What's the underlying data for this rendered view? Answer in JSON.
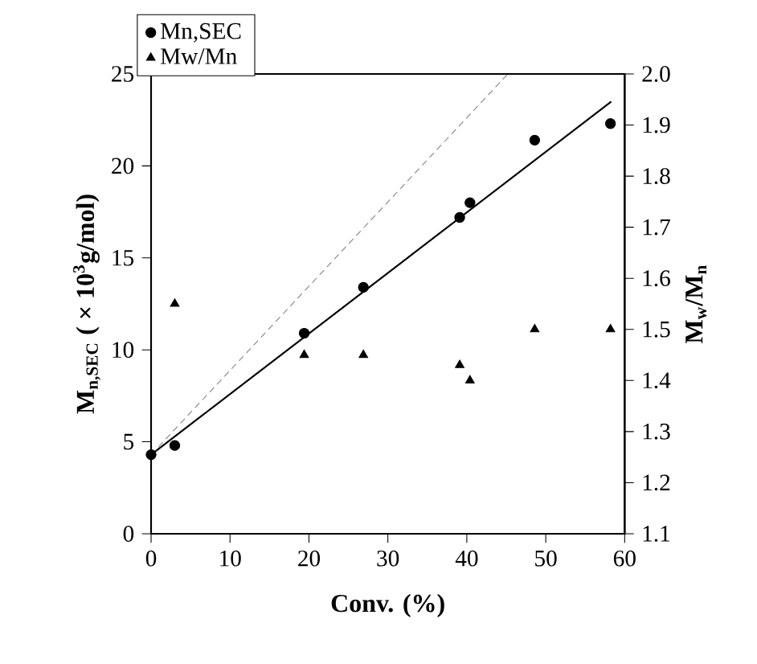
{
  "chart_data": {
    "type": "scatter",
    "xlabel": "Conv. (%)",
    "ylabel": "M$_{n,SEC}$ ( × 10$^{3}$g/mol)",
    "y2label": "M$_{w}$/M$_{n}$",
    "xlim": [
      0,
      60
    ],
    "xticks": [
      0,
      10,
      20,
      30,
      40,
      50,
      60
    ],
    "ylim": [
      0,
      25
    ],
    "yticks": [
      0,
      5,
      10,
      15,
      20,
      25
    ],
    "y2lim": [
      1.1,
      2.0
    ],
    "y2ticks": [
      1.1,
      1.2,
      1.3,
      1.4,
      1.5,
      1.6,
      1.7,
      1.8,
      1.9,
      {
        "value": 2.0,
        "label": "2.0"
      }
    ],
    "legend": "top left",
    "grid": false,
    "series": [
      {
        "name": "Mn,SEC",
        "marker": "circle",
        "color": "#000000",
        "x": [
          0,
          3,
          19.4,
          26.9,
          39.1,
          40.4,
          48.6,
          58.2
        ],
        "values": [
          4.3,
          4.8,
          10.9,
          13.4,
          17.2,
          18.0,
          21.4,
          22.3
        ]
      },
      {
        "name": "Mw/Mn",
        "marker": "triangle",
        "color": "#000000",
        "axis": "y2",
        "x": [
          3,
          19.4,
          26.9,
          39.1,
          40.4,
          48.6,
          58.2
        ],
        "values": [
          1.55,
          1.45,
          1.45,
          1.43,
          1.4,
          1.5,
          1.5
        ]
      },
      {
        "type": "line",
        "line_style": "solid",
        "color": "#000000",
        "x": [
          0,
          58.3
        ],
        "values": [
          4.3,
          23.5
        ]
      },
      {
        "type": "line",
        "line_style": "dashed",
        "color": "#808080",
        "x": [
          0,
          45.2
        ],
        "values": [
          4.3,
          25
        ]
      }
    ]
  }
}
